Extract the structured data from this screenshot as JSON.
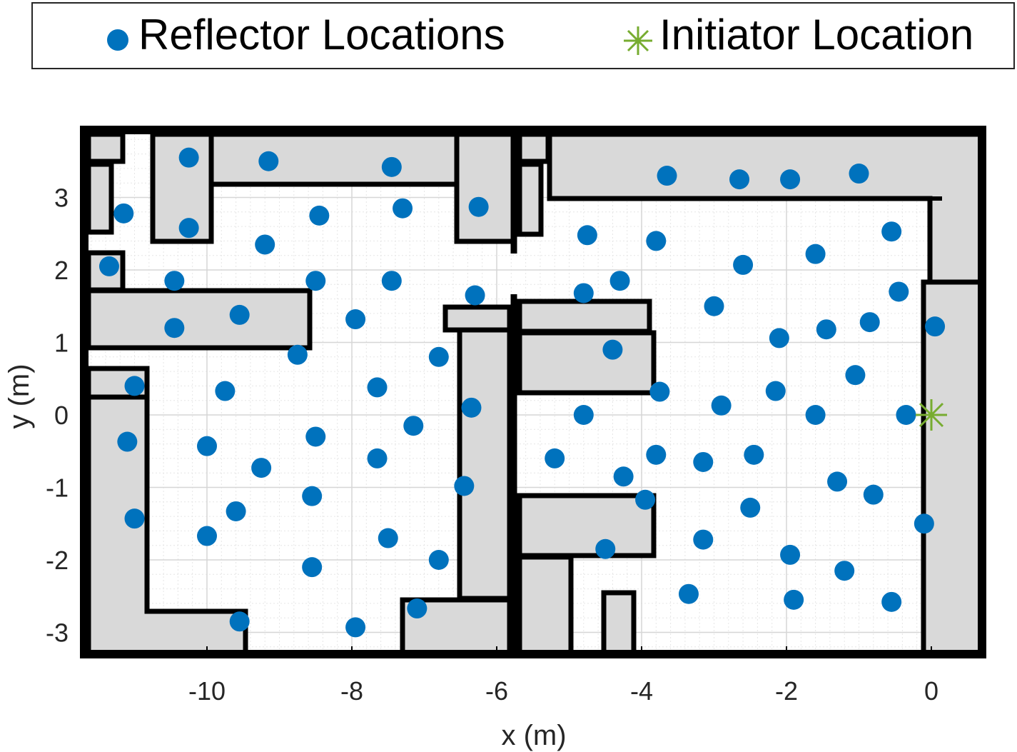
{
  "chart_data": {
    "type": "scatter",
    "title": "",
    "xlabel": "x (m)",
    "ylabel": "y (m)",
    "xlim": [
      -11.8,
      0.75
    ],
    "ylim": [
      -3.35,
      3.95
    ],
    "xticks": [
      -10,
      -8,
      -6,
      -4,
      -2,
      0
    ],
    "yticks": [
      -3,
      -2,
      -1,
      0,
      1,
      2,
      3
    ],
    "grid": "on (major and minor)",
    "legend_position": "top, outside plot",
    "series": [
      {
        "name": "Reflector Locations",
        "marker": "filled circle",
        "color": "#0072BD",
        "points": [
          [
            -10.25,
            3.55
          ],
          [
            -9.15,
            3.5
          ],
          [
            -7.45,
            3.42
          ],
          [
            -10.25,
            2.58
          ],
          [
            -11.15,
            2.78
          ],
          [
            -8.45,
            2.75
          ],
          [
            -7.3,
            2.85
          ],
          [
            -6.25,
            2.87
          ],
          [
            -9.2,
            2.35
          ],
          [
            -11.35,
            2.05
          ],
          [
            -10.45,
            1.85
          ],
          [
            -8.5,
            1.85
          ],
          [
            -7.45,
            1.85
          ],
          [
            -6.3,
            1.65
          ],
          [
            -10.45,
            1.2
          ],
          [
            -9.55,
            1.38
          ],
          [
            -7.95,
            1.32
          ],
          [
            -8.75,
            0.83
          ],
          [
            -6.8,
            0.8
          ],
          [
            -11.0,
            0.4
          ],
          [
            -9.75,
            0.33
          ],
          [
            -7.65,
            0.38
          ],
          [
            -6.35,
            0.1
          ],
          [
            -11.1,
            -0.37
          ],
          [
            -10.0,
            -0.43
          ],
          [
            -8.5,
            -0.3
          ],
          [
            -7.15,
            -0.15
          ],
          [
            -9.25,
            -0.73
          ],
          [
            -7.65,
            -0.6
          ],
          [
            -6.45,
            -0.98
          ],
          [
            -11.0,
            -1.43
          ],
          [
            -9.6,
            -1.33
          ],
          [
            -8.55,
            -1.12
          ],
          [
            -10.0,
            -1.67
          ],
          [
            -7.5,
            -1.7
          ],
          [
            -8.55,
            -2.1
          ],
          [
            -6.8,
            -2.0
          ],
          [
            -7.1,
            -2.67
          ],
          [
            -9.55,
            -2.85
          ],
          [
            -7.95,
            -2.93
          ],
          [
            -3.65,
            3.3
          ],
          [
            -2.65,
            3.25
          ],
          [
            -1.95,
            3.25
          ],
          [
            -1.0,
            3.33
          ],
          [
            -4.75,
            2.48
          ],
          [
            -3.8,
            2.4
          ],
          [
            -2.6,
            2.07
          ],
          [
            -1.6,
            2.22
          ],
          [
            -0.55,
            2.53
          ],
          [
            -4.3,
            1.85
          ],
          [
            -4.8,
            1.68
          ],
          [
            -3.0,
            1.5
          ],
          [
            -0.45,
            1.7
          ],
          [
            -2.1,
            1.06
          ],
          [
            -1.45,
            1.18
          ],
          [
            -0.85,
            1.28
          ],
          [
            0.05,
            1.22
          ],
          [
            -4.4,
            0.9
          ],
          [
            -3.75,
            0.32
          ],
          [
            -2.9,
            0.13
          ],
          [
            -2.15,
            0.33
          ],
          [
            -1.05,
            0.55
          ],
          [
            -4.8,
            0.0
          ],
          [
            -1.6,
            0.0
          ],
          [
            -0.35,
            0.0
          ],
          [
            -5.2,
            -0.6
          ],
          [
            -3.8,
            -0.55
          ],
          [
            -3.15,
            -0.65
          ],
          [
            -2.45,
            -0.55
          ],
          [
            -4.25,
            -0.85
          ],
          [
            -1.3,
            -0.92
          ],
          [
            -0.8,
            -1.1
          ],
          [
            -3.95,
            -1.17
          ],
          [
            -2.5,
            -1.28
          ],
          [
            -0.1,
            -1.5
          ],
          [
            -3.15,
            -1.72
          ],
          [
            -1.95,
            -1.93
          ],
          [
            -1.2,
            -2.15
          ],
          [
            -4.5,
            -1.85
          ],
          [
            -3.35,
            -2.47
          ],
          [
            -1.9,
            -2.55
          ],
          [
            -0.55,
            -2.58
          ]
        ]
      },
      {
        "name": "Initiator Location",
        "marker": "asterisk",
        "color": "#77AC30",
        "points": [
          [
            0.0,
            0.0
          ]
        ]
      }
    ]
  },
  "colors": {
    "wall_fill": "#d9d9d9",
    "wall_stroke": "#000000",
    "grid": "#d6d6d6",
    "axis_text": "#262626"
  }
}
